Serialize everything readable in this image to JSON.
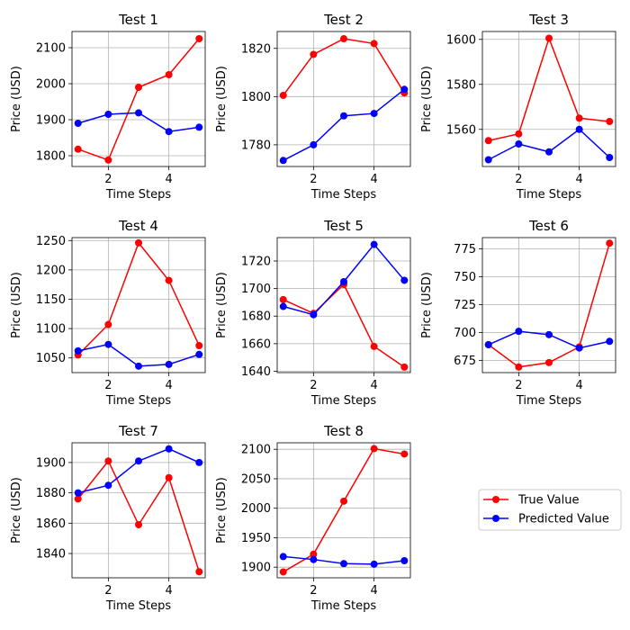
{
  "colors": {
    "true": "#ff0000",
    "pred": "#0000ff",
    "grid": "#b0b0b0"
  },
  "legend": {
    "entries": [
      {
        "label": "True Value",
        "color": "#ff0000"
      },
      {
        "label": "Predicted Value",
        "color": "#0000ff"
      }
    ]
  },
  "chart_data": [
    {
      "type": "line",
      "title": "Test 1",
      "xlabel": "Time Steps",
      "ylabel": "Price (USD)",
      "x": [
        1,
        2,
        3,
        4,
        5
      ],
      "xlim": [
        0.8,
        5.2
      ],
      "xticks": [
        2,
        4
      ],
      "ylim": [
        1770,
        2145
      ],
      "yticks": [
        1800,
        1900,
        2000,
        2100
      ],
      "series": [
        {
          "name": "True Value",
          "values": [
            1818,
            1788,
            1990,
            2025,
            2125
          ]
        },
        {
          "name": "Predicted Value",
          "values": [
            1890,
            1915,
            1919,
            1867,
            1879
          ]
        }
      ]
    },
    {
      "type": "line",
      "title": "Test 2",
      "xlabel": "Time Steps",
      "ylabel": "Price (USD)",
      "x": [
        1,
        2,
        3,
        4,
        5
      ],
      "xlim": [
        0.8,
        5.2
      ],
      "xticks": [
        2,
        4
      ],
      "ylim": [
        1771,
        1827
      ],
      "yticks": [
        1780,
        1800,
        1820
      ],
      "series": [
        {
          "name": "True Value",
          "values": [
            1800.5,
            1817.5,
            1824,
            1822,
            1801.5
          ]
        },
        {
          "name": "Predicted Value",
          "values": [
            1773.5,
            1780,
            1792,
            1793,
            1803
          ]
        }
      ]
    },
    {
      "type": "line",
      "title": "Test 3",
      "xlabel": "Time Steps",
      "ylabel": "Price (USD)",
      "x": [
        1,
        2,
        3,
        4,
        5
      ],
      "xlim": [
        0.8,
        5.2
      ],
      "xticks": [
        2,
        4
      ],
      "ylim": [
        1543.5,
        1603.5
      ],
      "yticks": [
        1560,
        1580,
        1600
      ],
      "series": [
        {
          "name": "True Value",
          "values": [
            1555,
            1558,
            1600.5,
            1565,
            1563.5
          ]
        },
        {
          "name": "Predicted Value",
          "values": [
            1546.5,
            1553.5,
            1550,
            1560,
            1547.5
          ]
        }
      ]
    },
    {
      "type": "line",
      "title": "Test 4",
      "xlabel": "Time Steps",
      "ylabel": "Price (USD)",
      "x": [
        1,
        2,
        3,
        4,
        5
      ],
      "xlim": [
        0.8,
        5.2
      ],
      "xticks": [
        2,
        4
      ],
      "ylim": [
        1025,
        1255
      ],
      "yticks": [
        1050,
        1100,
        1150,
        1200,
        1250
      ],
      "series": [
        {
          "name": "True Value",
          "values": [
            1055,
            1107,
            1246,
            1182,
            1071
          ]
        },
        {
          "name": "Predicted Value",
          "values": [
            1062,
            1073,
            1036,
            1039,
            1056
          ]
        }
      ]
    },
    {
      "type": "line",
      "title": "Test 5",
      "xlabel": "Time Steps",
      "ylabel": "Price (USD)",
      "x": [
        1,
        2,
        3,
        4,
        5
      ],
      "xlim": [
        0.8,
        5.2
      ],
      "xticks": [
        2,
        4
      ],
      "ylim": [
        1639,
        1737
      ],
      "yticks": [
        1640,
        1660,
        1680,
        1700,
        1720
      ],
      "series": [
        {
          "name": "True Value",
          "values": [
            1692,
            1682,
            1703,
            1658,
            1643
          ]
        },
        {
          "name": "Predicted Value",
          "values": [
            1687,
            1681,
            1705,
            1732,
            1706
          ]
        }
      ]
    },
    {
      "type": "line",
      "title": "Test 6",
      "xlabel": "Time Steps",
      "ylabel": "Price (USD)",
      "x": [
        1,
        2,
        3,
        4,
        5
      ],
      "xlim": [
        0.8,
        5.2
      ],
      "xticks": [
        2,
        4
      ],
      "ylim": [
        664,
        785
      ],
      "yticks": [
        675,
        700,
        725,
        750,
        775
      ],
      "series": [
        {
          "name": "True Value",
          "values": [
            689,
            669,
            673,
            687,
            780
          ]
        },
        {
          "name": "Predicted Value",
          "values": [
            689,
            701,
            698,
            686,
            692
          ]
        }
      ]
    },
    {
      "type": "line",
      "title": "Test 7",
      "xlabel": "Time Steps",
      "ylabel": "Price (USD)",
      "x": [
        1,
        2,
        3,
        4,
        5
      ],
      "xlim": [
        0.8,
        5.2
      ],
      "xticks": [
        2,
        4
      ],
      "ylim": [
        1824,
        1913
      ],
      "yticks": [
        1840,
        1860,
        1880,
        1900
      ],
      "series": [
        {
          "name": "True Value",
          "values": [
            1876,
            1901,
            1859,
            1890,
            1828
          ]
        },
        {
          "name": "Predicted Value",
          "values": [
            1880,
            1885,
            1901,
            1909,
            1900
          ]
        }
      ]
    },
    {
      "type": "line",
      "title": "Test 8",
      "xlabel": "Time Steps",
      "ylabel": "Price (USD)",
      "x": [
        1,
        2,
        3,
        4,
        5
      ],
      "xlim": [
        0.8,
        5.2
      ],
      "xticks": [
        2,
        4
      ],
      "ylim": [
        1882,
        2111
      ],
      "yticks": [
        1900,
        1950,
        2000,
        2050,
        2100
      ],
      "series": [
        {
          "name": "True Value",
          "values": [
            1892,
            1922,
            2012,
            2101,
            2092
          ]
        },
        {
          "name": "Predicted Value",
          "values": [
            1918,
            1913,
            1906,
            1905,
            1911
          ]
        }
      ]
    }
  ]
}
